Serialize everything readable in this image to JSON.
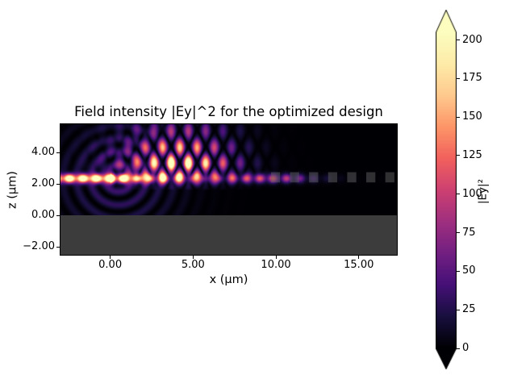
{
  "chart_data": {
    "type": "heatmap",
    "title": "Field intensity |Ey|^2 for the optimized design",
    "xlabel": "x (μm)",
    "ylabel": "z (μm)",
    "x_range": [
      -3.0,
      17.3
    ],
    "z_range": [
      -2.5,
      5.8
    ],
    "x_ticks": {
      "values": [
        0,
        5,
        10,
        15
      ],
      "labels": [
        "0.00",
        "5.00",
        "10.00",
        "15.00"
      ]
    },
    "z_ticks": {
      "values": [
        4,
        2,
        0,
        -2
      ],
      "labels": [
        "4.00",
        "2.00",
        "0.00",
        "−2.00"
      ]
    },
    "grid": false,
    "colormap": "magma",
    "colormap_stops": [
      "#000004",
      "#180f3e",
      "#451077",
      "#721f81",
      "#9f2f7f",
      "#cd4071",
      "#f1605d",
      "#fd9567",
      "#fec98d",
      "#fdeba8",
      "#fcfdbf"
    ],
    "colorbar": {
      "label": "|Ey|²",
      "vmin": 0,
      "vmax": 205,
      "extend": "both",
      "tick_values": [
        0,
        25,
        50,
        75,
        100,
        125,
        150,
        175,
        200
      ],
      "tick_labels": [
        "0",
        "25",
        "50",
        "75",
        "100",
        "125",
        "150",
        "175",
        "200"
      ]
    },
    "features": {
      "substrate": {
        "z_below": 0.0,
        "color": "#3c3c3c"
      },
      "waveguide": {
        "z_center": 2.35,
        "z_halfwidth": 0.27,
        "input_intensity": 235,
        "decay_length_um": 2.2,
        "fringe_period_um": 0.82,
        "dot_tail_intensity": 120,
        "dot_tail_decay_um": 3.5,
        "dot_bump_x": 9.5,
        "dot_bump_sigma": 2.5,
        "dot_bump_intensity": 110
      },
      "scatter": {
        "x_center": 4.2,
        "x_sigma": 3.1,
        "z_start": 1.6,
        "z_boost_center": 3.9,
        "z_boost_sigma": 1.2,
        "peak_intensity": 205,
        "lattice_period_x_um": 1.05,
        "lattice_period_z_um": 2.1
      },
      "halo": {
        "cx": 0.5,
        "cz": 2.35,
        "radius_sigma": 3.5,
        "intensity": 38,
        "period_um": 0.85
      },
      "grating": {
        "x_start": 9.7,
        "period_um": 1.15,
        "tooth_width_um": 0.55,
        "z_low": 2.1,
        "z_high": 2.75,
        "count": 7,
        "color": "rgba(96,96,96,0.5)"
      }
    }
  }
}
